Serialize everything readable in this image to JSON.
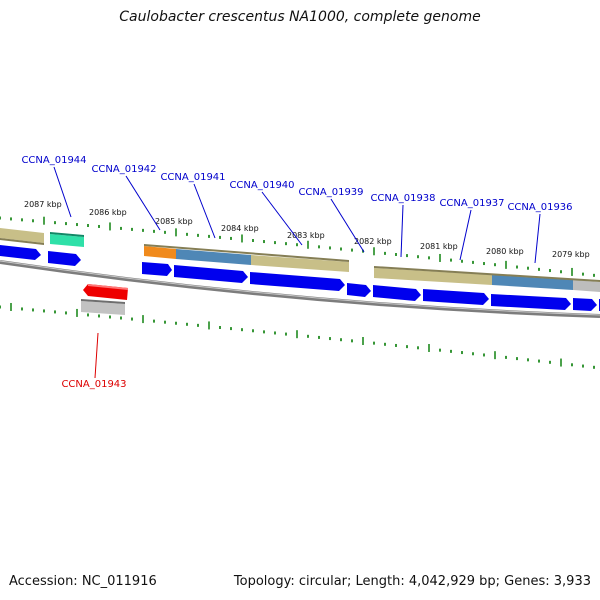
{
  "title": "Caulobacter crescentus NA1000, complete genome",
  "footer": {
    "accession": "Accession: NC_011916",
    "summary": "Topology: circular; Length: 4,042,929 bp; Genes: 3,933"
  },
  "colors": {
    "blue_cds": "#0000ee",
    "red_cds": "#ee0000",
    "gene_khaki": "#c8bf88",
    "gene_steel": "#4f87b6",
    "gene_orange": "#f08a1c",
    "gene_teal": "#2fe0a8",
    "gene_gray": "#bdbdbd",
    "backbone": "#888888",
    "tick": "#1f8a1f",
    "label_blue": "#0000cc",
    "label_red": "#dd0000"
  },
  "ruler_labels": [
    "2087 kbp",
    "2086 kbp",
    "2085 kbp",
    "2084 kbp",
    "2083 kbp",
    "2082 kbp",
    "2081 kbp",
    "2080 kbp",
    "2079 kbp"
  ],
  "gene_labels": [
    "CCNA_01944",
    "CCNA_01942",
    "CCNA_01941",
    "CCNA_01940",
    "CCNA_01939",
    "CCNA_01938",
    "CCNA_01937",
    "CCNA_01936",
    "CCNA_01943"
  ]
}
